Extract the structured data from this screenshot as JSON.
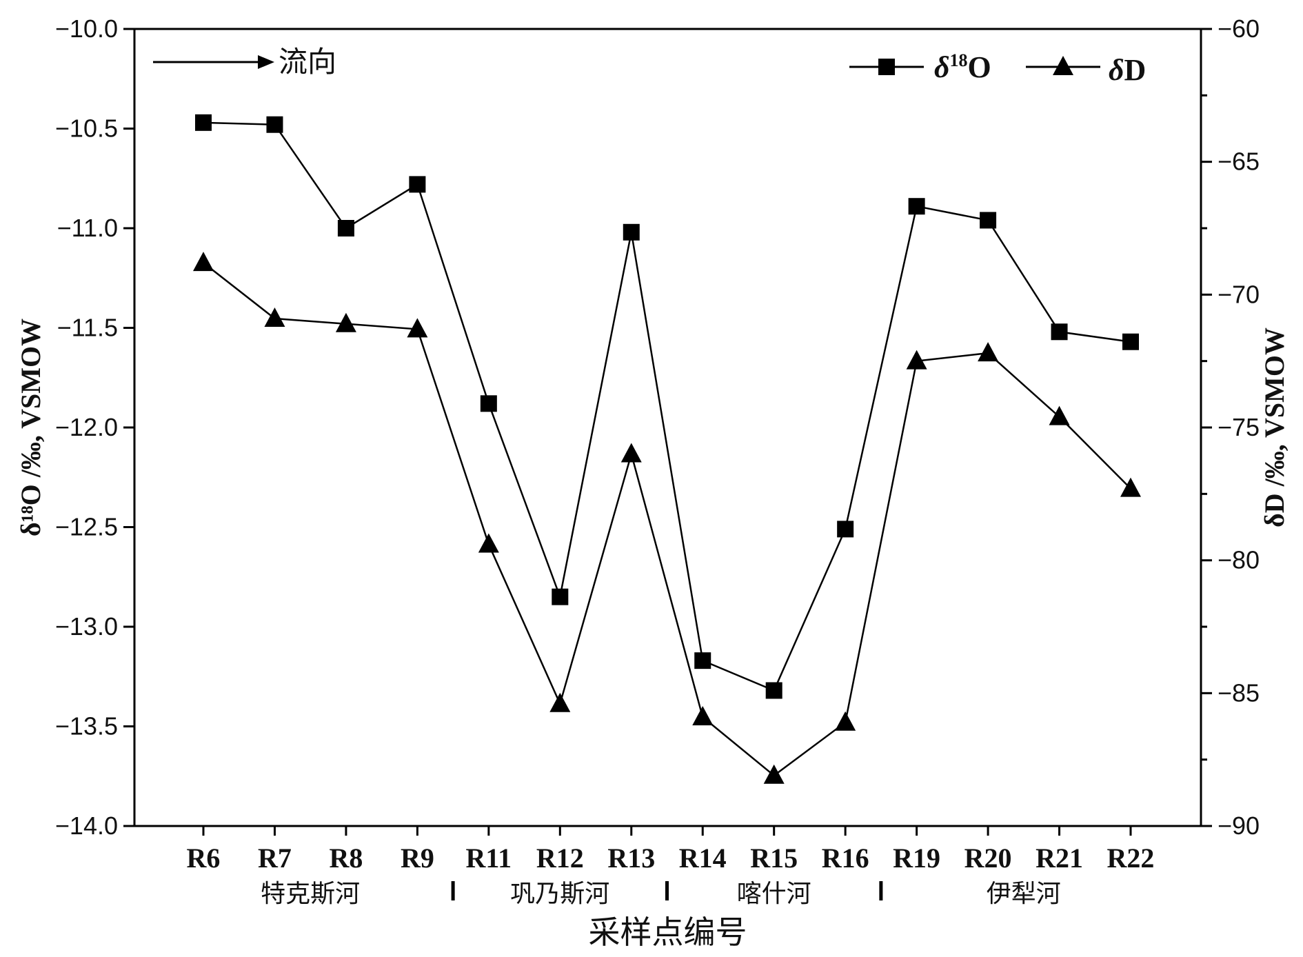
{
  "chart_data": {
    "type": "line",
    "categories": [
      "R6",
      "R7",
      "R8",
      "R9",
      "R11",
      "R12",
      "R13",
      "R14",
      "R15",
      "R16",
      "R19",
      "R20",
      "R21",
      "R22"
    ],
    "xlabel": "采样点编号",
    "ylabel_left": "δ¹⁸O /‰, VSMOW",
    "ylabel_right": "δD /‰, VSMOW",
    "ylim_left": [
      -14.0,
      -10.0
    ],
    "ylim_right": [
      -90,
      -60
    ],
    "yticks_left": [
      "-10.0",
      "-10.5",
      "-11.0",
      "-11.5",
      "-12.0",
      "-12.5",
      "-13.0",
      "-13.5",
      "-14.0"
    ],
    "yticks_right": [
      "-60",
      "-65",
      "-70",
      "-75",
      "-80",
      "-85",
      "-90"
    ],
    "series": [
      {
        "name": "δ18O",
        "axis": "left",
        "marker": "square",
        "values": [
          -10.47,
          -10.48,
          -11.0,
          -10.78,
          -11.88,
          -12.85,
          -11.02,
          -13.17,
          -13.32,
          -12.51,
          -10.89,
          -10.96,
          -11.52,
          -11.57
        ]
      },
      {
        "name": "δD",
        "axis": "right",
        "marker": "triangle",
        "values": [
          -68.8,
          -70.9,
          -71.1,
          -71.3,
          -79.4,
          -85.4,
          -76.0,
          -85.9,
          -88.1,
          -86.1,
          -72.5,
          -72.2,
          -74.6,
          -77.3
        ]
      }
    ],
    "groups": [
      {
        "label": "特克斯河",
        "from": 0,
        "to": 3
      },
      {
        "label": "巩乃斯河",
        "from": 4,
        "to": 6
      },
      {
        "label": "喀什河",
        "from": 7,
        "to": 9
      },
      {
        "label": "伊犁河",
        "from": 10,
        "to": 13
      }
    ],
    "annotation": "流向",
    "legend_position": "top-right",
    "grid": false,
    "colors": {
      "line": "#000000",
      "marker": "#000000",
      "axis": "#000000"
    }
  }
}
